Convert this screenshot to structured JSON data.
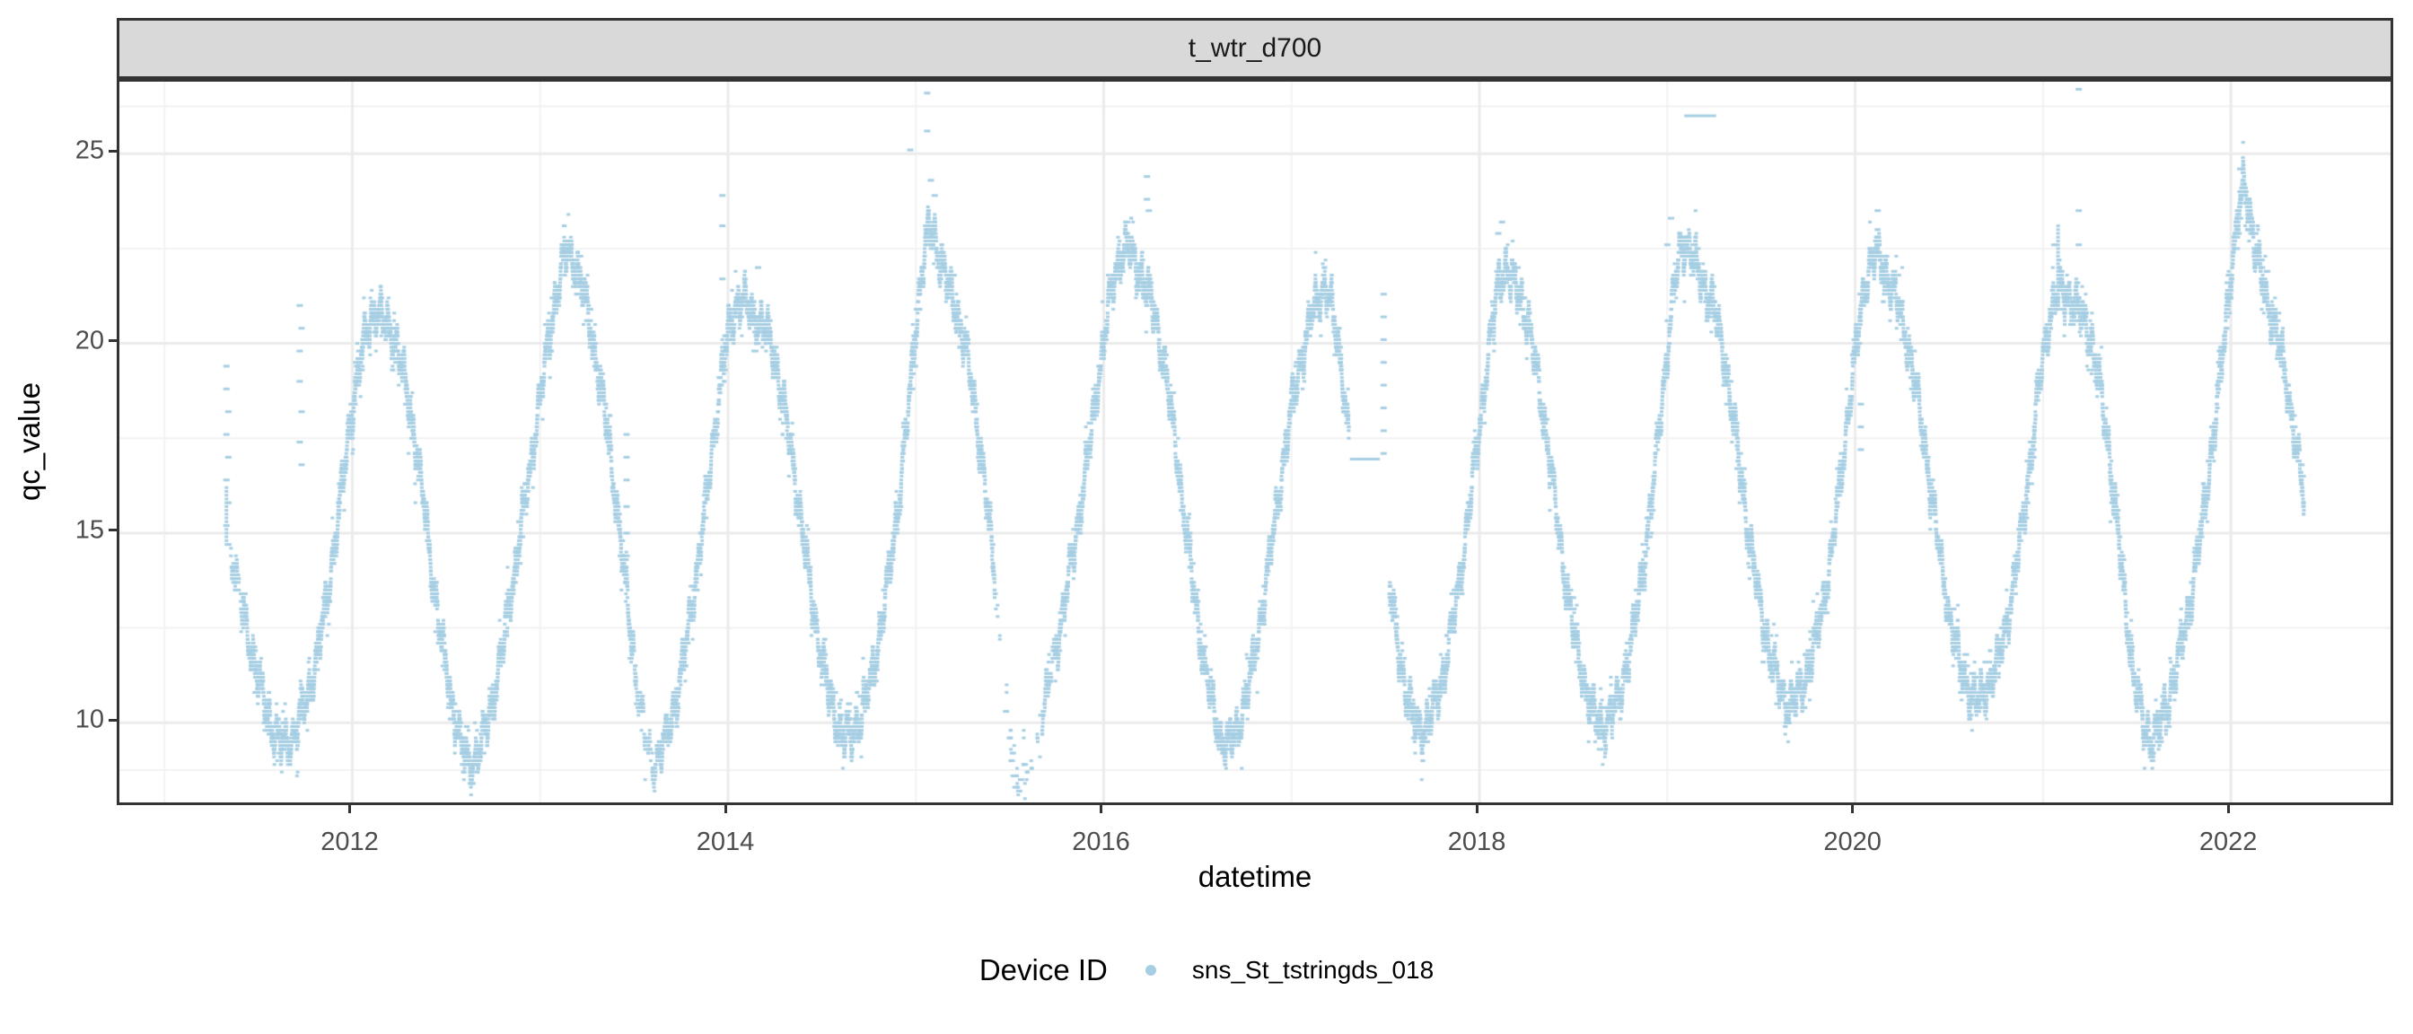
{
  "strip": {
    "title": "t_wtr_d700"
  },
  "axes": {
    "y_title": "qc_value",
    "x_title": "datetime"
  },
  "legend": {
    "title": "Device ID",
    "items": [
      {
        "label": "sns_St_tstringds_018",
        "color": "#a6cee3"
      }
    ]
  },
  "colors": {
    "point": "#a6cee3",
    "strip_fill": "#d9d9d9",
    "panel_border": "#333333",
    "grid_major": "#ebebeb",
    "grid_minor": "#f2f2f2",
    "tick_text": "#4d4d4d"
  },
  "chart_data": {
    "type": "scatter",
    "title": "t_wtr_d700",
    "xlabel": "datetime",
    "ylabel": "qc_value",
    "legend_title": "Device ID",
    "series_name": "sns_St_tstringds_018",
    "point_color": "#a6cee3",
    "xlim": [
      2010.76,
      2022.85
    ],
    "ylim": [
      7.9,
      26.9
    ],
    "x_major_ticks": [
      2012,
      2014,
      2016,
      2018,
      2020,
      2022
    ],
    "x_minor_ticks": [
      2011,
      2013,
      2015,
      2017,
      2019,
      2021
    ],
    "y_major_ticks": [
      25,
      20,
      15,
      10
    ],
    "y_minor_ticks": [
      8.75,
      12.5,
      17.5,
      22.5,
      26.25
    ],
    "grid": true,
    "legend_position": "bottom",
    "band_segments": [
      [
        [
          2011.35,
          14.6
        ],
        [
          2011.4,
          13.4
        ],
        [
          2011.45,
          12.2
        ],
        [
          2011.5,
          11.1
        ],
        [
          2011.55,
          10.2
        ],
        [
          2011.6,
          9.6
        ],
        [
          2011.64,
          9.4
        ],
        [
          2011.68,
          9.6
        ],
        [
          2011.73,
          10.2
        ],
        [
          2011.78,
          11.0
        ],
        [
          2011.83,
          12.2
        ],
        [
          2011.88,
          13.8
        ],
        [
          2011.93,
          15.6
        ],
        [
          2011.98,
          17.6
        ],
        [
          2012.03,
          19.2
        ],
        [
          2012.08,
          20.4
        ],
        [
          2012.12,
          20.9
        ],
        [
          2012.16,
          20.6
        ],
        [
          2012.2,
          20.4
        ],
        [
          2012.24,
          19.9
        ],
        [
          2012.28,
          19.0
        ],
        [
          2012.33,
          17.6
        ],
        [
          2012.38,
          15.8
        ],
        [
          2012.43,
          13.8
        ],
        [
          2012.48,
          12.0
        ],
        [
          2012.53,
          10.5
        ],
        [
          2012.58,
          9.4
        ],
        [
          2012.62,
          8.9
        ],
        [
          2012.66,
          9.1
        ],
        [
          2012.71,
          9.8
        ],
        [
          2012.76,
          10.9
        ],
        [
          2012.81,
          12.3
        ],
        [
          2012.86,
          13.9
        ],
        [
          2012.91,
          15.5
        ],
        [
          2012.96,
          17.2
        ],
        [
          2013.01,
          18.9
        ],
        [
          2013.06,
          20.6
        ],
        [
          2013.11,
          21.9
        ],
        [
          2013.15,
          22.5
        ],
        [
          2013.19,
          22.0
        ],
        [
          2013.23,
          21.3
        ],
        [
          2013.27,
          20.4
        ],
        [
          2013.31,
          19.2
        ],
        [
          2013.36,
          17.6
        ],
        [
          2013.41,
          15.6
        ],
        [
          2013.46,
          13.4
        ],
        [
          2013.51,
          11.2
        ],
        [
          2013.56,
          9.6
        ],
        [
          2013.6,
          8.9
        ],
        [
          2013.64,
          9.2
        ],
        [
          2013.69,
          9.9
        ],
        [
          2013.74,
          11.0
        ],
        [
          2013.79,
          12.5
        ],
        [
          2013.84,
          14.2
        ],
        [
          2013.89,
          16.1
        ],
        [
          2013.94,
          18.2
        ],
        [
          2013.99,
          20.0
        ],
        [
          2014.04,
          21.0
        ],
        [
          2014.08,
          21.2
        ],
        [
          2014.12,
          20.8
        ],
        [
          2014.16,
          20.6
        ],
        [
          2014.2,
          20.4
        ],
        [
          2014.24,
          19.8
        ],
        [
          2014.28,
          18.8
        ],
        [
          2014.33,
          17.4
        ],
        [
          2014.38,
          15.6
        ],
        [
          2014.43,
          13.8
        ],
        [
          2014.48,
          12.2
        ],
        [
          2014.53,
          10.9
        ],
        [
          2014.58,
          10.0
        ],
        [
          2014.62,
          9.6
        ],
        [
          2014.66,
          9.7
        ],
        [
          2014.71,
          10.2
        ],
        [
          2014.76,
          11.1
        ],
        [
          2014.81,
          12.4
        ],
        [
          2014.86,
          14.0
        ],
        [
          2014.91,
          15.9
        ],
        [
          2014.96,
          18.2
        ],
        [
          2015.0,
          20.5
        ],
        [
          2015.04,
          22.2
        ],
        [
          2015.07,
          23.1
        ],
        [
          2015.1,
          22.8
        ],
        [
          2015.14,
          22.0
        ],
        [
          2015.18,
          21.4
        ],
        [
          2015.22,
          20.8
        ],
        [
          2015.26,
          20.0
        ],
        [
          2015.3,
          18.8
        ],
        [
          2015.35,
          17.0
        ],
        [
          2015.4,
          14.8
        ],
        [
          2015.44,
          12.6
        ],
        [
          2015.48,
          10.6
        ],
        [
          2015.52,
          9.0
        ],
        [
          2015.56,
          8.4
        ],
        [
          2015.6,
          8.6
        ],
        [
          2015.64,
          9.3
        ],
        [
          2015.68,
          10.4
        ],
        [
          2015.73,
          11.6
        ],
        [
          2015.78,
          12.9
        ],
        [
          2015.83,
          14.3
        ],
        [
          2015.88,
          15.8
        ],
        [
          2015.93,
          17.5
        ],
        [
          2015.98,
          19.4
        ],
        [
          2016.03,
          21.1
        ],
        [
          2016.08,
          22.2
        ],
        [
          2016.12,
          22.6
        ],
        [
          2016.16,
          22.2
        ],
        [
          2016.2,
          21.8
        ],
        [
          2016.24,
          21.3
        ],
        [
          2016.28,
          20.5
        ],
        [
          2016.33,
          19.2
        ],
        [
          2016.38,
          17.4
        ],
        [
          2016.43,
          15.4
        ],
        [
          2016.48,
          13.4
        ],
        [
          2016.53,
          11.7
        ],
        [
          2016.58,
          10.4
        ],
        [
          2016.62,
          9.6
        ],
        [
          2016.66,
          9.4
        ],
        [
          2016.7,
          9.7
        ],
        [
          2016.75,
          10.5
        ],
        [
          2016.8,
          11.7
        ],
        [
          2016.85,
          13.2
        ],
        [
          2016.9,
          14.9
        ],
        [
          2016.95,
          16.7
        ],
        [
          2017.0,
          18.3
        ],
        [
          2017.05,
          19.6
        ],
        [
          2017.1,
          20.6
        ],
        [
          2017.14,
          21.2
        ],
        [
          2017.18,
          21.5
        ],
        [
          2017.21,
          21.0
        ],
        [
          2017.24,
          20.2
        ],
        [
          2017.27,
          19.2
        ],
        [
          2017.29,
          18.2
        ],
        [
          2017.305,
          17.4
        ]
      ],
      [
        [
          2017.52,
          13.6
        ],
        [
          2017.56,
          12.2
        ],
        [
          2017.6,
          11.0
        ],
        [
          2017.64,
          10.2
        ],
        [
          2017.68,
          9.8
        ],
        [
          2017.72,
          9.9
        ],
        [
          2017.76,
          10.4
        ],
        [
          2017.81,
          11.3
        ],
        [
          2017.86,
          12.6
        ],
        [
          2017.91,
          14.3
        ],
        [
          2017.96,
          16.2
        ],
        [
          2018.01,
          18.2
        ],
        [
          2018.06,
          20.2
        ],
        [
          2018.1,
          21.6
        ],
        [
          2018.14,
          22.0
        ],
        [
          2018.18,
          21.6
        ],
        [
          2018.22,
          21.2
        ],
        [
          2018.26,
          20.5
        ],
        [
          2018.3,
          19.4
        ],
        [
          2018.35,
          17.8
        ],
        [
          2018.4,
          15.9
        ],
        [
          2018.45,
          14.0
        ],
        [
          2018.5,
          12.4
        ],
        [
          2018.55,
          11.2
        ],
        [
          2018.6,
          10.3
        ],
        [
          2018.64,
          9.9
        ],
        [
          2018.68,
          10.0
        ],
        [
          2018.73,
          10.5
        ],
        [
          2018.78,
          11.4
        ],
        [
          2018.83,
          12.7
        ],
        [
          2018.88,
          14.4
        ],
        [
          2018.93,
          16.5
        ],
        [
          2018.98,
          18.9
        ],
        [
          2019.03,
          21.2
        ],
        [
          2019.07,
          22.5
        ],
        [
          2019.1,
          22.7
        ],
        [
          2019.14,
          22.2
        ],
        [
          2019.18,
          21.7
        ],
        [
          2019.22,
          21.3
        ],
        [
          2019.26,
          20.7
        ],
        [
          2019.3,
          19.7
        ],
        [
          2019.35,
          18.1
        ],
        [
          2019.4,
          16.2
        ],
        [
          2019.45,
          14.4
        ],
        [
          2019.5,
          12.9
        ],
        [
          2019.55,
          11.7
        ],
        [
          2019.6,
          10.9
        ],
        [
          2019.64,
          10.5
        ],
        [
          2019.68,
          10.6
        ],
        [
          2019.73,
          11.1
        ],
        [
          2019.78,
          11.9
        ],
        [
          2019.83,
          13.1
        ],
        [
          2019.88,
          14.7
        ],
        [
          2019.93,
          16.7
        ],
        [
          2019.98,
          18.9
        ],
        [
          2020.03,
          20.8
        ],
        [
          2020.07,
          22.0
        ],
        [
          2020.11,
          22.4
        ],
        [
          2020.15,
          22.0
        ],
        [
          2020.19,
          21.5
        ],
        [
          2020.23,
          21.0
        ],
        [
          2020.27,
          20.2
        ],
        [
          2020.31,
          19.2
        ],
        [
          2020.36,
          17.7
        ],
        [
          2020.41,
          15.9
        ],
        [
          2020.46,
          14.1
        ],
        [
          2020.51,
          12.6
        ],
        [
          2020.56,
          11.5
        ],
        [
          2020.61,
          10.8
        ],
        [
          2020.65,
          10.6
        ],
        [
          2020.69,
          10.8
        ],
        [
          2020.74,
          11.3
        ],
        [
          2020.79,
          12.2
        ],
        [
          2020.84,
          13.5
        ],
        [
          2020.89,
          15.2
        ],
        [
          2020.94,
          17.2
        ],
        [
          2020.99,
          19.3
        ],
        [
          2021.04,
          20.8
        ],
        [
          2021.09,
          21.4
        ],
        [
          2021.13,
          21.3
        ],
        [
          2021.17,
          21.0
        ],
        [
          2021.21,
          20.7
        ],
        [
          2021.25,
          20.2
        ],
        [
          2021.29,
          19.2
        ],
        [
          2021.34,
          17.6
        ],
        [
          2021.39,
          15.4
        ],
        [
          2021.44,
          13.0
        ],
        [
          2021.49,
          11.0
        ],
        [
          2021.54,
          9.8
        ],
        [
          2021.58,
          9.6
        ],
        [
          2021.62,
          9.9
        ],
        [
          2021.66,
          10.5
        ],
        [
          2021.71,
          11.4
        ],
        [
          2021.76,
          12.6
        ],
        [
          2021.81,
          14.0
        ],
        [
          2021.86,
          15.7
        ],
        [
          2021.91,
          17.7
        ],
        [
          2021.96,
          19.9
        ],
        [
          2022.0,
          21.9
        ],
        [
          2022.04,
          23.4
        ],
        [
          2022.07,
          24.2
        ],
        [
          2022.1,
          23.5
        ],
        [
          2022.13,
          22.5
        ],
        [
          2022.16,
          21.7
        ],
        [
          2022.2,
          21.0
        ],
        [
          2022.24,
          20.3
        ],
        [
          2022.28,
          19.4
        ],
        [
          2022.32,
          18.2
        ],
        [
          2022.36,
          16.9
        ],
        [
          2022.39,
          15.9
        ]
      ]
    ],
    "sparse_ranges": [
      [
        2011.35,
        2011.42,
        0.35
      ],
      [
        2013.5,
        2013.62,
        0.45
      ],
      [
        2015.42,
        2015.67,
        0.08
      ],
      [
        2015.67,
        2015.74,
        0.5
      ]
    ],
    "outlier_points": [
      [
        2011.33,
        19.4
      ],
      [
        2011.33,
        18.8
      ],
      [
        2011.34,
        18.2
      ],
      [
        2011.33,
        17.6
      ],
      [
        2011.34,
        17.0
      ],
      [
        2011.33,
        16.4
      ],
      [
        2011.34,
        15.8
      ],
      [
        2011.33,
        15.2
      ],
      [
        2011.34,
        14.7
      ],
      [
        2011.72,
        21.0
      ],
      [
        2011.73,
        20.4
      ],
      [
        2011.72,
        19.8
      ],
      [
        2011.72,
        19.0
      ],
      [
        2011.73,
        18.2
      ],
      [
        2011.72,
        17.4
      ],
      [
        2011.73,
        16.8
      ],
      [
        2013.46,
        17.6
      ],
      [
        2013.46,
        17.0
      ],
      [
        2013.46,
        16.4
      ],
      [
        2013.46,
        15.7
      ],
      [
        2013.46,
        15.0
      ],
      [
        2013.46,
        14.4
      ],
      [
        2013.97,
        23.9
      ],
      [
        2013.97,
        23.1
      ],
      [
        2013.97,
        21.7
      ],
      [
        2014.16,
        22.0
      ],
      [
        2014.97,
        25.1
      ],
      [
        2015.06,
        26.55
      ],
      [
        2015.06,
        25.6
      ],
      [
        2015.08,
        24.3
      ],
      [
        2015.1,
        23.9
      ],
      [
        2015.48,
        10.3
      ],
      [
        2015.5,
        9.6
      ],
      [
        2015.51,
        9.0
      ],
      [
        2015.52,
        8.6
      ],
      [
        2015.53,
        8.3
      ],
      [
        2015.55,
        8.2
      ],
      [
        2015.56,
        8.5
      ],
      [
        2015.58,
        8.9
      ],
      [
        2016.23,
        24.4
      ],
      [
        2016.23,
        23.8
      ],
      [
        2016.24,
        23.5
      ],
      [
        2016.22,
        21.6
      ],
      [
        2017.49,
        21.3
      ],
      [
        2017.49,
        20.7
      ],
      [
        2017.49,
        20.1
      ],
      [
        2017.49,
        19.5
      ],
      [
        2017.49,
        18.9
      ],
      [
        2017.49,
        18.3
      ],
      [
        2017.49,
        17.7
      ],
      [
        2017.49,
        17.1
      ],
      [
        2018.12,
        23.2
      ],
      [
        2018.1,
        22.9
      ],
      [
        2019.02,
        23.3
      ],
      [
        2019.0,
        22.6
      ],
      [
        2020.03,
        18.4
      ],
      [
        2020.03,
        17.8
      ],
      [
        2020.03,
        17.2
      ],
      [
        2020.12,
        23.5
      ],
      [
        2021.19,
        26.67
      ],
      [
        2021.19,
        23.5
      ],
      [
        2021.19,
        22.6
      ],
      [
        2021.06,
        22.6
      ],
      [
        2022.05,
        24.58
      ]
    ],
    "hlines": [
      {
        "x1": 2019.09,
        "x2": 2019.26,
        "y": 26.0
      },
      {
        "x1": 2017.31,
        "x2": 2017.47,
        "y": 16.95
      }
    ],
    "vlines": [
      {
        "x": 2021.08,
        "y1": 21.4,
        "y2": 23.15
      },
      {
        "x": 2011.33,
        "y1": 14.7,
        "y2": 16.2
      }
    ]
  }
}
